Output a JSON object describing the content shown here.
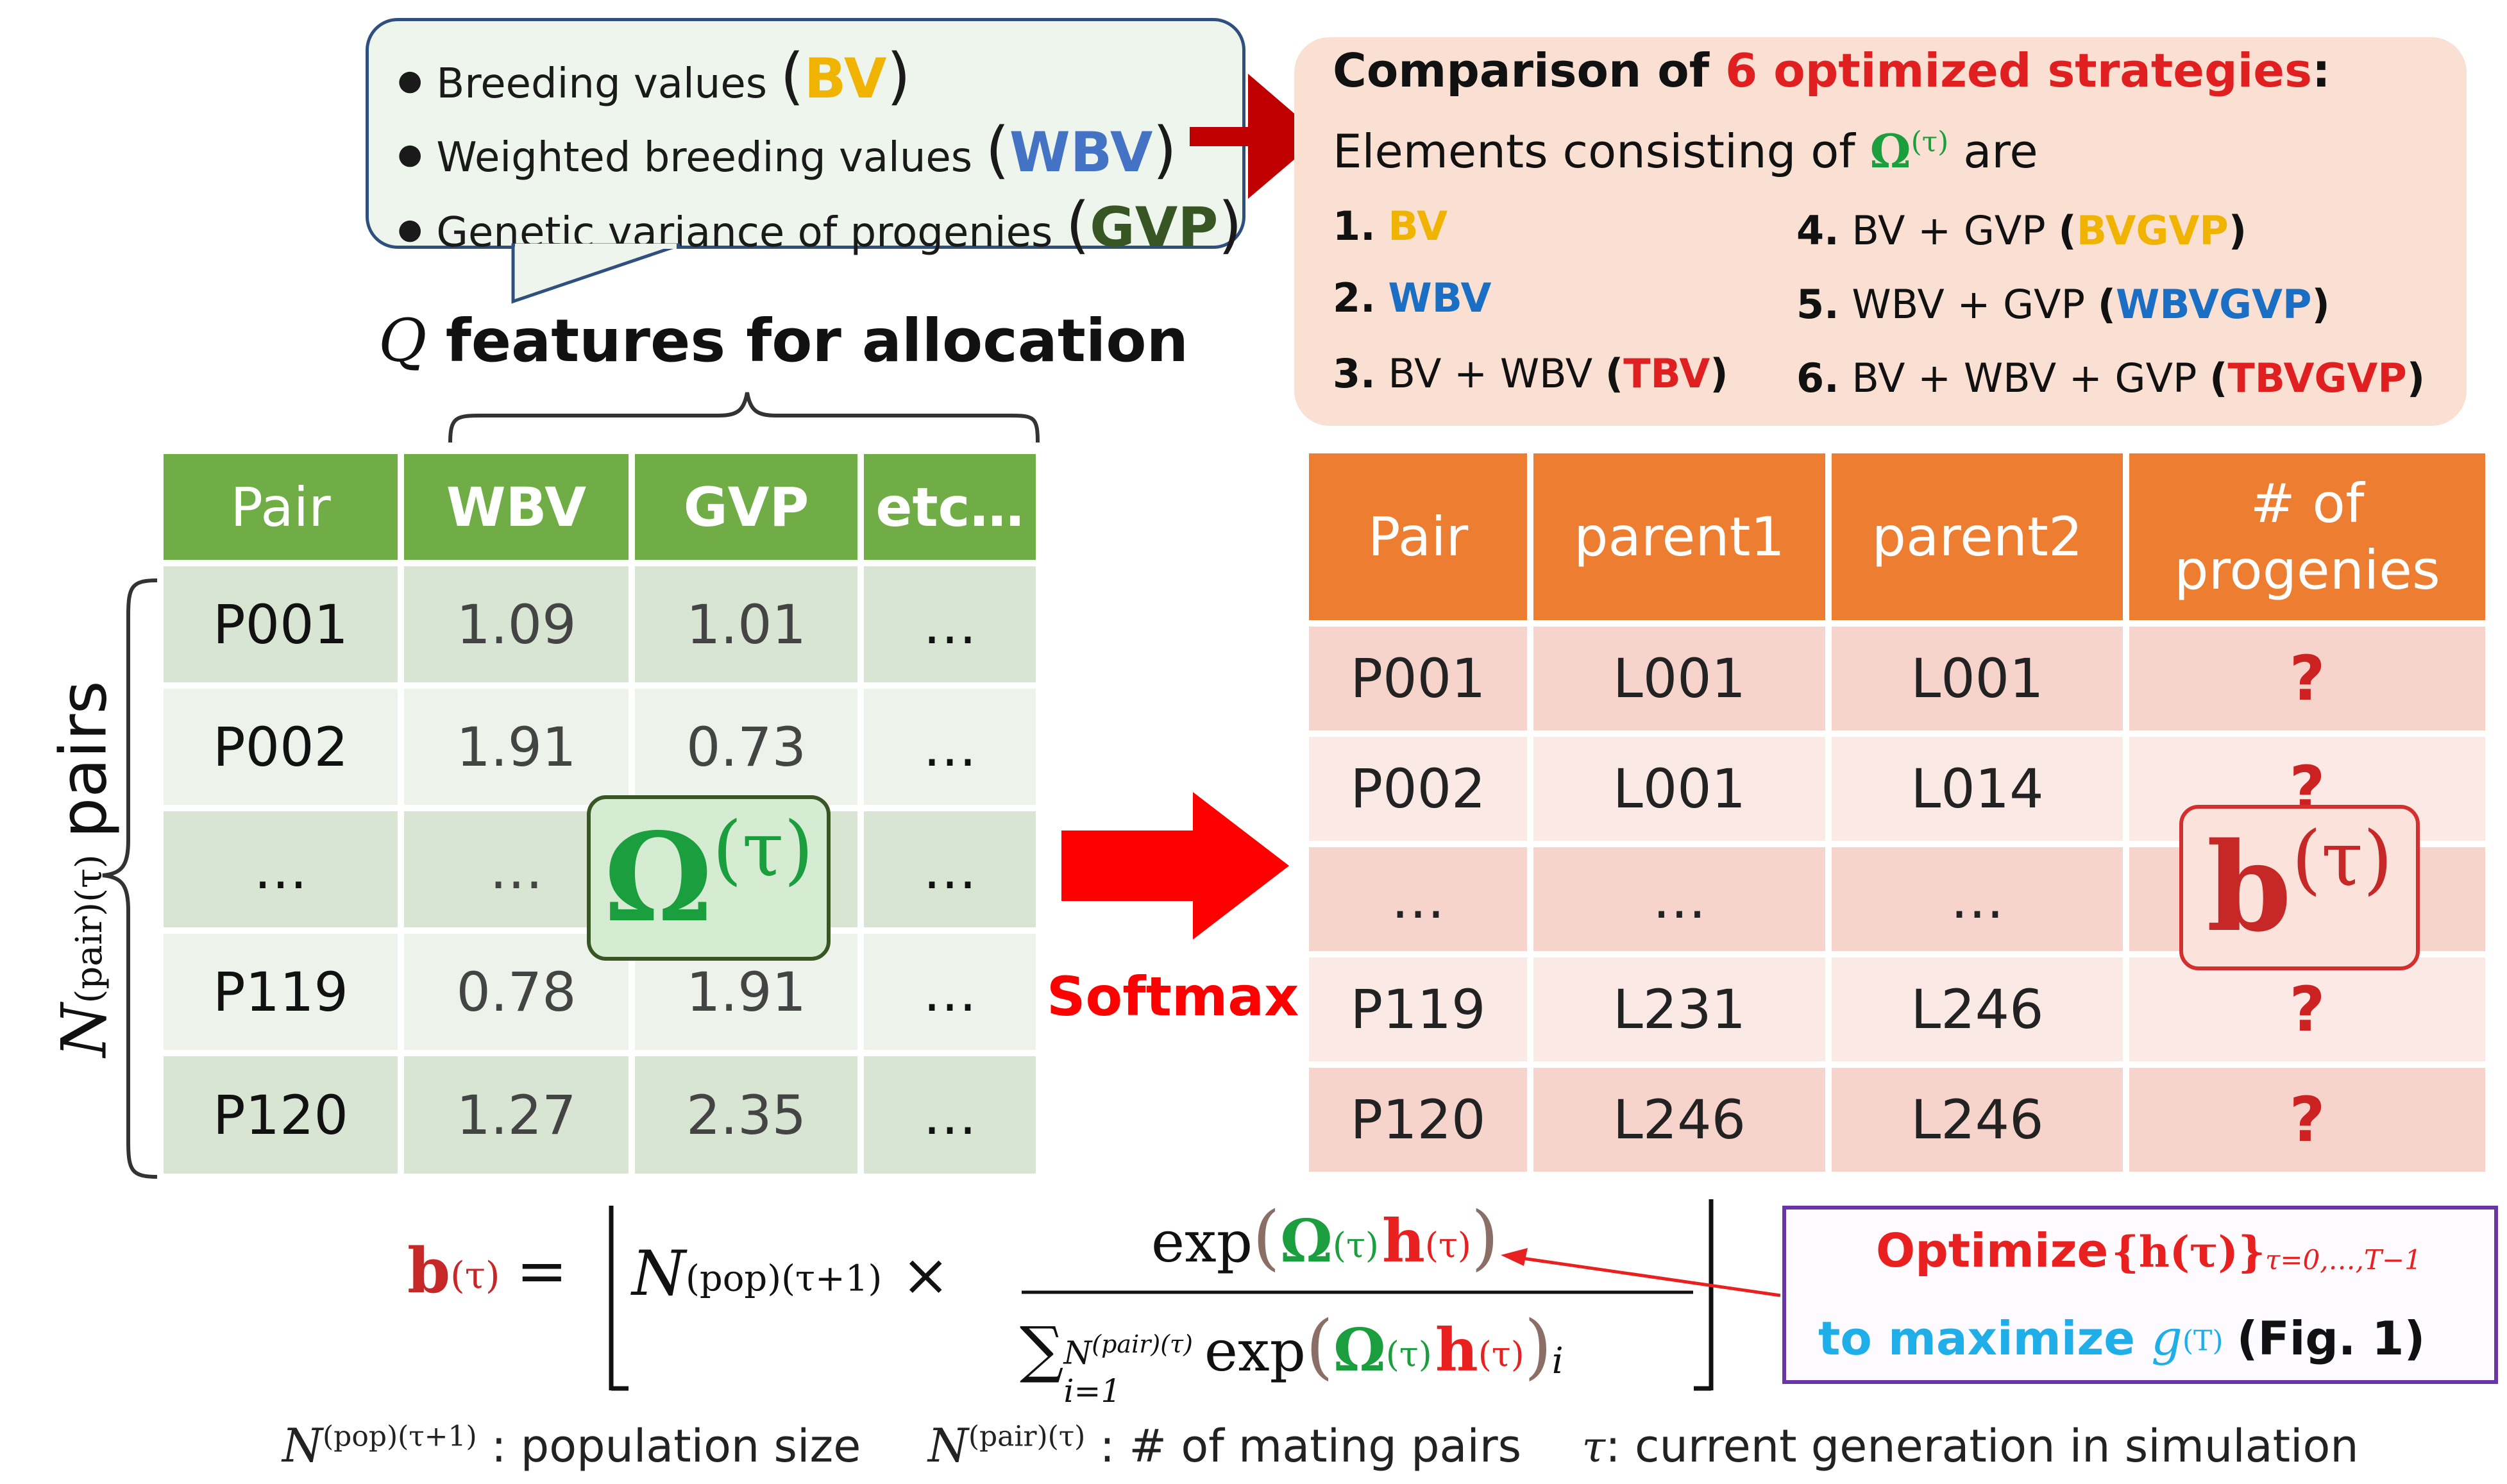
{
  "colors": {
    "bv": "#f0b400",
    "wbv": "#4472c4",
    "gvp": "#375623",
    "green_header": "#70ad47",
    "orange_header": "#ed7d31",
    "red": "#e8201f",
    "omega": "#1b9e3e",
    "tbv": "#e02020",
    "blue_dark": "#1a6fc4",
    "cyan": "#1faee8"
  },
  "bubble": {
    "items": [
      {
        "text": "Breeding values",
        "abbr": "BV"
      },
      {
        "text": "Weighted breeding values",
        "abbr": "WBV"
      },
      {
        "text": "Genetic variance of progenies",
        "abbr": "GVP"
      }
    ]
  },
  "features": {
    "q": "Q",
    "title": "features for allocation",
    "side_var": "N",
    "side_sup": "(pair)(τ)",
    "side_word": "pairs"
  },
  "left_table": {
    "headers": [
      "Pair",
      "WBV",
      "GVP",
      "etc…"
    ],
    "rows": [
      [
        "P001",
        "1.09",
        "1.01",
        "…"
      ],
      [
        "P002",
        "1.91",
        "0.73",
        "…"
      ],
      [
        "…",
        "…",
        "",
        "…"
      ],
      [
        "P119",
        "0.78",
        "1.91",
        "…"
      ],
      [
        "P120",
        "1.27",
        "2.35",
        "…"
      ]
    ],
    "omega_symbol": "Ω",
    "omega_sup": "(τ)"
  },
  "softmax_label": "Softmax",
  "right_table": {
    "headers": [
      "Pair",
      "parent1",
      "parent2",
      "# of progenies"
    ],
    "rows": [
      [
        "P001",
        "L001",
        "L001",
        "?"
      ],
      [
        "P002",
        "L001",
        "L014",
        "?"
      ],
      [
        "…",
        "…",
        "…",
        ""
      ],
      [
        "P119",
        "L231",
        "L246",
        "?"
      ],
      [
        "P120",
        "L246",
        "L246",
        "?"
      ]
    ],
    "b_symbol": "b",
    "b_sup": "(τ)"
  },
  "comparison": {
    "title_pre": "Comparison of ",
    "title_hl": "6 optimized strategies",
    "title_post": ":",
    "subtitle_pre": "Elements consisting of ",
    "subtitle_sym": "Ω",
    "subtitle_sup": "(τ)",
    "subtitle_post": " are",
    "items": [
      {
        "num": "1.",
        "pre": "",
        "tag": "BV",
        "tagcolor": "#f0b400",
        "paren": false
      },
      {
        "num": "2.",
        "pre": "",
        "tag": "WBV",
        "tagcolor": "#1a6fc4",
        "paren": false
      },
      {
        "num": "3.",
        "pre": "BV + WBV ",
        "tag": "TBV",
        "tagcolor": "#e02020",
        "paren": true
      },
      {
        "num": "4.",
        "pre": "BV + GVP ",
        "tag": "BVGVP",
        "tagcolor": "#f0b400",
        "paren": true
      },
      {
        "num": "5.",
        "pre": "WBV + GVP ",
        "tag": "WBVGVP",
        "tagcolor": "#1a6fc4",
        "paren": true
      },
      {
        "num": "6.",
        "pre": "BV + WBV + GVP ",
        "tag": "TBVGVP",
        "tagcolor": "#e02020",
        "paren": true
      }
    ]
  },
  "formula": {
    "lhs": "b",
    "lhs_sup": "(τ)",
    "eq": "=",
    "n_pop": "N",
    "n_pop_sup": "(pop)(τ+1)",
    "times": "×",
    "exp": "exp",
    "omega": "Ω",
    "sup_tau": "(τ)",
    "h": "h",
    "sum": "∑",
    "sum_sub": "i=1",
    "sum_sup": "N(pair)(τ)",
    "sub_i": "i"
  },
  "optimize": {
    "word": "Optimize",
    "set": "{h(τ)}",
    "set_sub": "τ=0,…,T−1",
    "line2_pre": "to maximize ",
    "g": "g",
    "g_sup": "(T)",
    "fig": "(Fig. 1)"
  },
  "legend": {
    "pop_var": "N",
    "pop_sup": "(pop)(τ+1)",
    "pop_desc": ": population size",
    "pair_var": "N",
    "pair_sup": "(pair)(τ)",
    "pair_desc": ": # of mating pairs",
    "tau": "τ",
    "tau_desc": ": current generation in simulation"
  }
}
